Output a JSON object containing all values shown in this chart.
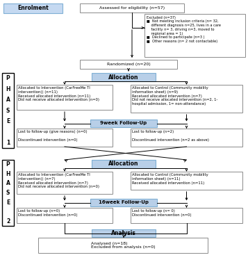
{
  "bg_color": "#ffffff",
  "blue_box_facecolor": "#b8cfe8",
  "blue_box_edge": "#7fafd4",
  "white_box_edge": "#8a8a8a",
  "label_box_facecolor": "#c5d9f1",
  "label_box_edge": "#7fafd4",
  "enrollment_label": "Enrolment",
  "eligibility_text": "Assessed for eligibility (n=57)",
  "excluded_text": "Excluded (n=37)\n■  Not meeting inclusion criteria (n= 32,\n    different diagnosis n=25, lives in a care\n    facility n= 3, driving n=3, moved to\n    regional area = 1)\n■  Declined to participate (n=3 )\n■  Other reasons (n= 2 not contactable)",
  "randomized_text": "Randomized (n=20)",
  "allocation1_text": "Allocation",
  "alloc1_left_text": "Allocated to Intervention (CarFreeMe TI\nintervention() (n=11)\nReceived allocated intervention (n=11)\nDid not receive allocated intervention (n=0)",
  "alloc1_right_text": "Allocated to Control (Community mobility\ninformation sheet) (n=9)\nReceived allocated intervention (n=7)\nDid not receive allocated intervention (n=2, 1-\nhospital admission, 1= non-attendance)",
  "followup1_text": "9week Follow-Up",
  "fu1_left_text": "Lost to follow-up (give reasons) (n=0)\n\nDiscontinued intervention (n=0)",
  "fu1_right_text": "Lost to follow-up (n=2)\n\nDiscontinued intervention (n=2 as above)",
  "allocation2_text": "Allocation",
  "alloc2_left_text": "Allocated to Intervention (CarFreeMe TI\nintervention() (n=7)\nReceived allocated intervention (n=7)\nDid not receive allocated intervention (n=0)",
  "alloc2_right_text": "Allocated to Control (Community mobility\ninformation sheet) (n=11)\nReceived allocated intervention (n=11)",
  "followup2_text": "16week Follow-Up",
  "fu2_left_text": "Lost to follow-up (n=0)\nDiscontinued intervention (n=0)",
  "fu2_right_text": "Lost to follow-up (n= 0)\nDiscontinued intervention (n=0)",
  "analysis_text": "Analysis",
  "analysis_bottom_text": "Analysed (n=18)\nExcluded from analysis (n=0)",
  "phase1_letters": [
    "P",
    "H",
    "A",
    "S",
    "E",
    "",
    "1"
  ],
  "phase2_letters": [
    "P",
    "H",
    "A",
    "S",
    "E",
    "",
    "2"
  ]
}
